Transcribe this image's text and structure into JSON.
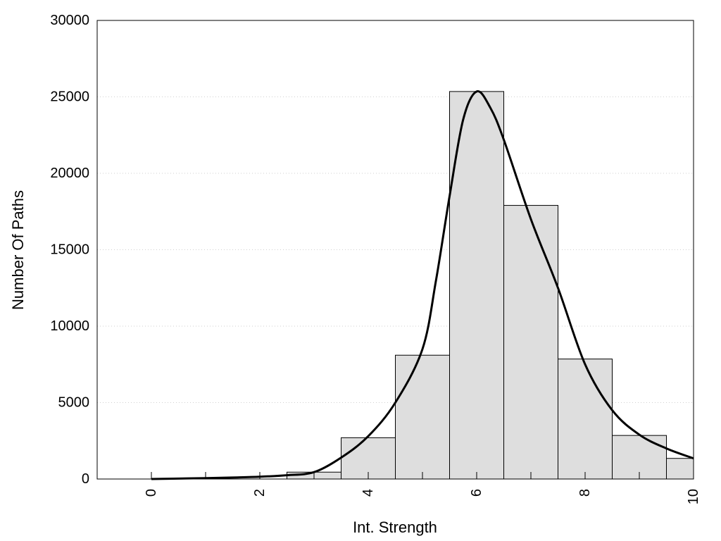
{
  "chart_data": {
    "type": "bar",
    "title": "",
    "xlabel": "Int. Strength",
    "ylabel": "Number Of Paths",
    "xlim": [
      -1,
      10
    ],
    "ylim": [
      0,
      30000
    ],
    "x_ticks": [
      0,
      2,
      4,
      6,
      8,
      10
    ],
    "y_ticks": [
      0,
      5000,
      10000,
      15000,
      20000,
      25000,
      30000
    ],
    "grid": "horizontal dotted",
    "bar_color": "#dedede",
    "bins": [
      {
        "x": 0,
        "value": 0
      },
      {
        "x": 1,
        "value": 0
      },
      {
        "x": 2,
        "value": 0
      },
      {
        "x": 3,
        "value": 450
      },
      {
        "x": 4,
        "value": 2700
      },
      {
        "x": 5,
        "value": 8100
      },
      {
        "x": 6,
        "value": 25350
      },
      {
        "x": 7,
        "value": 17900
      },
      {
        "x": 8,
        "value": 7850
      },
      {
        "x": 9,
        "value": 2850
      },
      {
        "x": 10,
        "value": 1350
      }
    ],
    "curve": {
      "x": [
        0,
        0.5,
        1,
        1.5,
        2,
        2.5,
        3,
        3.5,
        4,
        4.5,
        5,
        5.25,
        5.5,
        5.75,
        6,
        6.25,
        6.5,
        7,
        7.5,
        8,
        8.5,
        9,
        9.5,
        10
      ],
      "y": [
        0,
        30,
        60,
        100,
        150,
        250,
        450,
        1400,
        2800,
        5000,
        8500,
        13000,
        18500,
        23500,
        25350,
        24300,
        22200,
        17000,
        12500,
        7500,
        4500,
        2900,
        2000,
        1350
      ]
    }
  }
}
